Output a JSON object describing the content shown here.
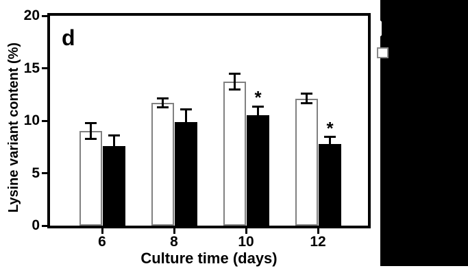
{
  "figure": {
    "panel_label": "d",
    "significance_marker": "*",
    "background": "#ffffff"
  },
  "chart_data": {
    "type": "bar",
    "title": "",
    "xlabel": "Culture time (days)",
    "ylabel": "Lysine variant content (%)",
    "categories": [
      "6",
      "8",
      "10",
      "12"
    ],
    "ylim": [
      0,
      20
    ],
    "yticks": [
      0,
      5,
      10,
      15,
      20
    ],
    "grid": false,
    "legend_position": "none",
    "axis_color": "#000000",
    "series": [
      {
        "name": "open-bars",
        "fill": "#ffffff",
        "border": "#808080",
        "values": [
          9.0,
          11.7,
          13.7,
          12.1
        ],
        "errors": [
          0.75,
          0.4,
          0.75,
          0.45
        ],
        "significant": [
          false,
          false,
          false,
          false
        ]
      },
      {
        "name": "filled-bars",
        "fill": "#000000",
        "border": "#000000",
        "values": [
          7.6,
          9.9,
          10.5,
          7.8
        ],
        "errors": [
          1.0,
          1.2,
          0.85,
          0.65
        ],
        "significant": [
          false,
          false,
          true,
          true
        ]
      }
    ]
  },
  "cropped_right_region": {
    "background": "#000000",
    "legend_square_fill": "#ffffff",
    "legend_square_border": "#888888"
  }
}
